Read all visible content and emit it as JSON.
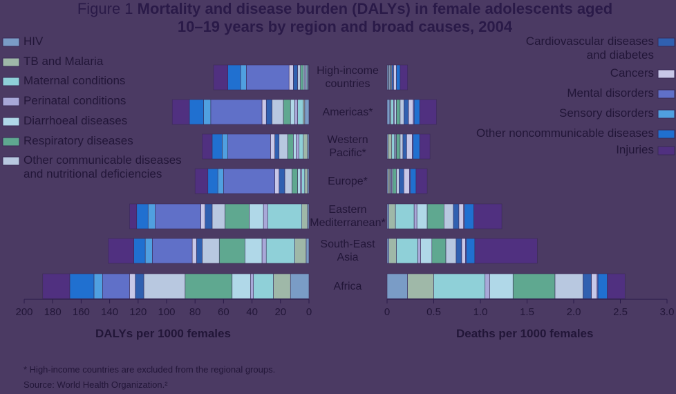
{
  "chart_data": {
    "type": "butterfly",
    "figure_label": "Figure 1",
    "title": "Mortality and disease burden (DALYs) in female adolescents aged 10–19 years by region and broad causes, 2004",
    "categories": [
      "High-income countries",
      "Americas*",
      "Western Pacific*",
      "Europe*",
      "Eastern Mediterranean*",
      "South-East Asia",
      "Africa"
    ],
    "left": {
      "xlabel": "DALYs per 1000 females",
      "xlim": [
        0,
        200
      ],
      "xticks": [
        0,
        20,
        40,
        60,
        80,
        100,
        120,
        140,
        160,
        180,
        200
      ]
    },
    "right": {
      "xlabel": "Deaths per 1000 females",
      "xlim": [
        0,
        3
      ],
      "xticks": [
        0,
        0.5,
        {
          "value": 1,
          "label": "1.0"
        },
        1.5,
        {
          "value": 2,
          "label": "2.0"
        },
        2.5,
        {
          "value": 3,
          "label": "3.0"
        }
      ]
    },
    "series": [
      {
        "name": "HIV",
        "color": "#7a9cc6",
        "dalys": [
          0.5,
          3,
          1,
          1,
          1,
          2,
          13
        ],
        "deaths": [
          0.01,
          0.03,
          0.01,
          0.01,
          0.02,
          0.02,
          0.22
        ]
      },
      {
        "name": "TB and Malaria",
        "color": "#9fb8a8",
        "dalys": [
          0.5,
          1,
          3,
          2,
          4,
          8,
          12
        ],
        "deaths": [
          0,
          0.01,
          0.04,
          0.02,
          0.07,
          0.08,
          0.28
        ]
      },
      {
        "name": "Maternal conditions",
        "color": "#8fd0d8",
        "dalys": [
          1,
          4,
          3,
          2,
          24,
          20,
          14
        ],
        "deaths": [
          0.01,
          0.03,
          0.03,
          0.01,
          0.2,
          0.23,
          0.55
        ]
      },
      {
        "name": "Perinatal conditions",
        "color": "#a8a8d8",
        "dalys": [
          1,
          2,
          2,
          1,
          3,
          3,
          2
        ],
        "deaths": [
          0,
          0.01,
          0.01,
          0.01,
          0.03,
          0.03,
          0.05
        ]
      },
      {
        "name": "Diarrhoeal diseases",
        "color": "#b0d8e8",
        "dalys": [
          1,
          3,
          2,
          2,
          10,
          12,
          13
        ],
        "deaths": [
          0.01,
          0.02,
          0.01,
          0.01,
          0.11,
          0.12,
          0.25
        ]
      },
      {
        "name": "Respiratory diseases",
        "color": "#5fa890",
        "dalys": [
          2,
          5,
          4,
          4,
          17,
          18,
          33
        ],
        "deaths": [
          0.01,
          0.04,
          0.04,
          0.04,
          0.18,
          0.15,
          0.45
        ]
      },
      {
        "name": "Other communicable diseases and nutritional deficiencies",
        "color": "#b8c8e0",
        "dalys": [
          2,
          8,
          6,
          5,
          9,
          12,
          29
        ],
        "deaths": [
          0.01,
          0.04,
          0.03,
          0.03,
          0.1,
          0.11,
          0.3
        ]
      },
      {
        "name": "Cardiovascular diseases and diabetes",
        "color": "#3060b0",
        "dalys": [
          3,
          4,
          3,
          4,
          5,
          4,
          6
        ],
        "deaths": [
          0.02,
          0.05,
          0.04,
          0.05,
          0.06,
          0.06,
          0.09
        ]
      },
      {
        "name": "Cancers",
        "color": "#c8c8e8",
        "dalys": [
          3,
          3,
          3,
          3,
          3,
          3,
          4
        ],
        "deaths": [
          0.03,
          0.05,
          0.06,
          0.06,
          0.05,
          0.04,
          0.06
        ]
      },
      {
        "name": "Mental disorders",
        "color": "#6070c8",
        "dalys": [
          30,
          36,
          30,
          36,
          32,
          28,
          19
        ],
        "deaths": [
          0,
          0.01,
          0.01,
          0.01,
          0.01,
          0.01,
          0.01
        ]
      },
      {
        "name": "Sensory disorders",
        "color": "#50a0e0",
        "dalys": [
          4,
          5,
          4,
          4,
          5,
          5,
          6
        ],
        "deaths": [
          0,
          0,
          0,
          0,
          0,
          0,
          0
        ]
      },
      {
        "name": "Other noncommunicable diseases",
        "color": "#2070d0",
        "dalys": [
          9,
          10,
          7,
          7,
          8,
          8,
          17
        ],
        "deaths": [
          0.04,
          0.06,
          0.07,
          0.06,
          0.1,
          0.09,
          0.1
        ]
      },
      {
        "name": "Injuries",
        "color": "#503080",
        "dalys": [
          10,
          12,
          7,
          9,
          5,
          18,
          19
        ],
        "deaths": [
          0.08,
          0.18,
          0.11,
          0.12,
          0.3,
          0.67,
          0.19
        ]
      }
    ],
    "footnotes": [
      "* High-income countries are excluded from the regional groups.",
      "Source: World Health Organization.²"
    ]
  }
}
